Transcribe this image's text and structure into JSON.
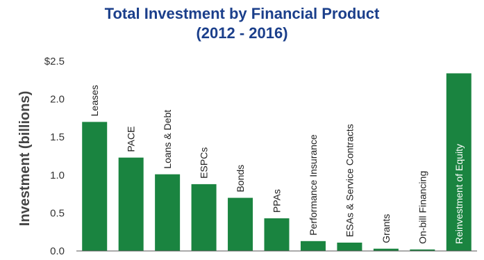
{
  "chart_data": {
    "type": "bar",
    "title": "Total Investment by Financial Product",
    "subtitle": "(2012 - 2016)",
    "ylabel": "Investment (billions)",
    "xlabel": "",
    "ylim": [
      0,
      2.5
    ],
    "yticks": [
      {
        "value": 0.0,
        "label": "0.0"
      },
      {
        "value": 0.5,
        "label": "0.5"
      },
      {
        "value": 1.0,
        "label": "1.0"
      },
      {
        "value": 1.5,
        "label": "1.5"
      },
      {
        "value": 2.0,
        "label": "2.0"
      },
      {
        "value": 2.5,
        "label": "$2.5"
      }
    ],
    "categories": [
      "Leases",
      "PACE",
      "Loans & Debt",
      "ESPCs",
      "Bonds",
      "PPAs",
      "Performance Insurance",
      "ESAs & Service Contracts",
      "Grants",
      "On-bill Financing",
      "Reinvestment of Equity"
    ],
    "values": [
      1.7,
      1.23,
      1.01,
      0.88,
      0.7,
      0.43,
      0.13,
      0.11,
      0.03,
      0.02,
      2.34
    ],
    "grid": false,
    "bar_color": "#1a8440",
    "inside_label_color": "#ffffff",
    "outside_label_color": "#222222",
    "title_color": "#1b3f8b"
  }
}
